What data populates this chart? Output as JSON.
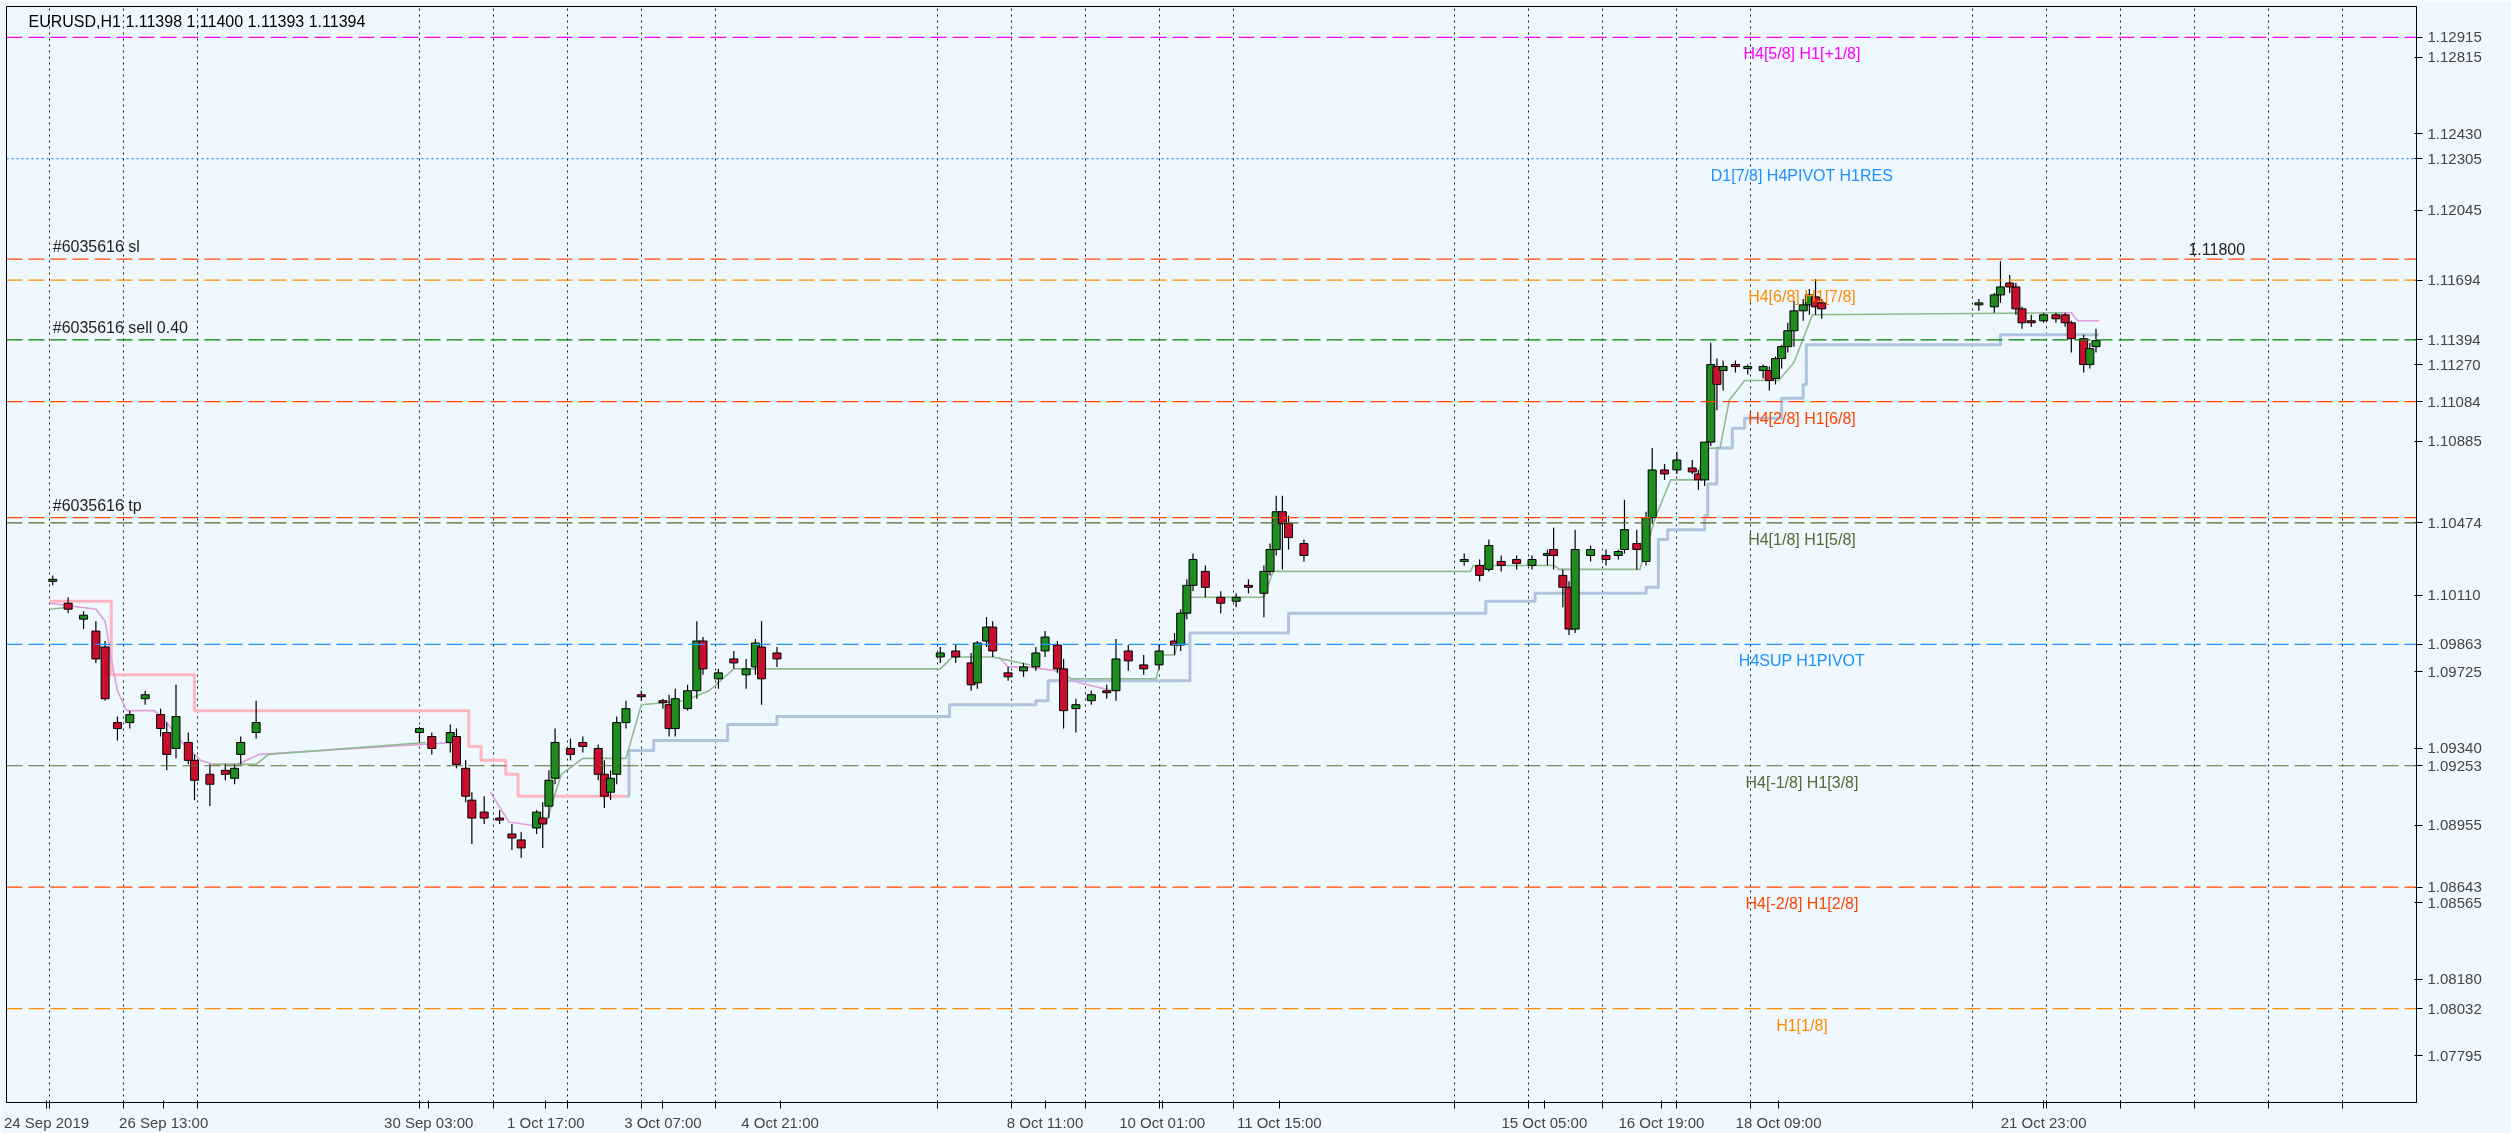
{
  "chart_data": {
    "type": "candlestick",
    "title": "EURUSD,H1  1.11398 1.11400 1.11393 1.11394",
    "x": [
      "2019-09-25T01:00",
      "2019-09-25T06:00",
      "2019-09-25T11:00",
      "2019-09-25T15:00",
      "2019-09-25T18:00",
      "2019-09-25T22:00",
      "2019-09-26T02:00",
      "2019-09-26T07:00",
      "2019-09-26T12:00",
      "2019-09-26T14:00",
      "2019-09-26T17:00",
      "2019-09-26T21:00",
      "2019-09-26T23:00",
      "2019-09-27T04:00",
      "2019-09-27T09:00",
      "2019-09-27T12:00",
      "2019-09-27T14:00",
      "2019-09-27T19:00",
      "2019-09-30T00:00",
      "2019-09-30T04:00",
      "2019-09-30T10:00",
      "2019-09-30T12:00",
      "2019-09-30T15:00",
      "2019-09-30T17:00",
      "2019-09-30T21:00",
      "2019-10-01T02:00",
      "2019-10-01T06:00",
      "2019-10-01T09:00",
      "2019-10-01T14:00",
      "2019-10-01T16:00",
      "2019-10-01T18:00",
      "2019-10-01T20:00",
      "2019-10-02T01:00",
      "2019-10-02T05:00",
      "2019-10-02T10:00",
      "2019-10-02T12:00",
      "2019-10-02T14:00",
      "2019-10-02T16:00",
      "2019-10-02T19:00",
      "2019-10-03T00:00",
      "2019-10-03T07:00",
      "2019-10-03T09:00",
      "2019-10-03T11:00",
      "2019-10-03T15:00",
      "2019-10-03T18:00",
      "2019-10-03T20:00",
      "2019-10-04T01:00",
      "2019-10-04T06:00",
      "2019-10-04T10:00",
      "2019-10-04T13:00",
      "2019-10-04T15:00",
      "2019-10-04T20:00",
      "2019-10-07T01:00",
      "2019-10-07T06:00",
      "2019-10-07T11:00",
      "2019-10-07T13:00",
      "2019-10-07T16:00",
      "2019-10-07T18:00",
      "2019-10-07T23:00",
      "2019-10-08T04:00",
      "2019-10-08T08:00",
      "2019-10-08T11:00",
      "2019-10-08T15:00",
      "2019-10-08T17:00",
      "2019-10-08T21:00",
      "2019-10-09T02:00",
      "2019-10-09T07:00",
      "2019-10-09T10:00",
      "2019-10-09T14:00",
      "2019-10-09T19:00",
      "2019-10-10T00:00",
      "2019-10-10T05:00",
      "2019-10-10T07:00",
      "2019-10-10T09:00",
      "2019-10-10T11:00",
      "2019-10-10T15:00",
      "2019-10-10T20:00",
      "2019-10-11T01:00",
      "2019-10-11T05:00",
      "2019-10-11T10:00",
      "2019-10-11T12:00",
      "2019-10-11T14:00",
      "2019-10-11T16:00",
      "2019-10-11T18:00",
      "2019-10-11T23:00",
      "2019-10-14T03:00",
      "2019-10-14T08:00",
      "2019-10-14T11:00",
      "2019-10-14T15:00",
      "2019-10-14T20:00",
      "2019-10-15T01:00",
      "2019-10-15T06:00",
      "2019-10-15T08:00",
      "2019-10-15T11:00",
      "2019-10-15T13:00",
      "2019-10-15T15:00",
      "2019-10-15T20:00",
      "2019-10-16T01:00",
      "2019-10-16T05:00",
      "2019-10-16T07:00",
      "2019-10-16T11:00",
      "2019-10-16T14:00",
      "2019-10-16T16:00",
      "2019-10-16T20:00",
      "2019-10-17T00:00",
      "2019-10-17T05:00",
      "2019-10-17T07:00",
      "2019-10-17T09:00",
      "2019-10-17T11:00",
      "2019-10-17T13:00",
      "2019-10-17T15:00",
      "2019-10-17T19:00",
      "2019-10-17T23:00",
      "2019-10-18T04:00",
      "2019-10-18T06:00",
      "2019-10-18T08:00",
      "2019-10-18T10:00",
      "2019-10-18T12:00",
      "2019-10-18T14:00",
      "2019-10-18T17:00",
      "2019-10-18T19:00",
      "2019-10-18T21:00",
      "2019-10-18T23:00",
      "2019-10-21T02:00",
      "2019-10-21T07:00",
      "2019-10-21T09:00",
      "2019-10-21T12:00",
      "2019-10-21T14:00",
      "2019-10-21T16:00",
      "2019-10-21T19:00",
      "2019-10-21T23:00",
      "2019-10-22T03:00",
      "2019-10-22T06:00",
      "2019-10-22T08:00",
      "2019-10-22T12:00",
      "2019-10-22T14:00",
      "2019-10-22T16:00"
    ],
    "ohlc": [
      [
        1.1018,
        1.1021,
        1.1016,
        1.1019
      ],
      [
        1.1007,
        1.101,
        1.1002,
        1.1004
      ],
      [
        1.0999,
        1.1003,
        1.0994,
        1.1001
      ],
      [
        1.0993,
        1.0998,
        1.0977,
        1.0979
      ],
      [
        1.0985,
        1.0988,
        1.0958,
        1.0959
      ],
      [
        1.0947,
        1.095,
        1.0938,
        1.0944
      ],
      [
        1.0947,
        1.0953,
        1.0944,
        1.0951
      ],
      [
        1.0959,
        1.0963,
        1.0956,
        1.0961
      ],
      [
        1.0951,
        1.0954,
        1.094,
        1.0944
      ],
      [
        1.0942,
        1.0947,
        1.0923,
        1.0931
      ],
      [
        1.0934,
        1.0966,
        1.0929,
        1.095
      ],
      [
        1.0937,
        1.0942,
        1.0926,
        1.0928
      ],
      [
        1.0928,
        1.0931,
        1.0908,
        1.0918
      ],
      [
        1.0921,
        1.0926,
        1.0905,
        1.0916
      ],
      [
        1.0923,
        1.0926,
        1.0918,
        1.0921
      ],
      [
        1.0919,
        1.0926,
        1.0916,
        1.0924
      ],
      [
        1.0931,
        1.094,
        1.0926,
        1.0937
      ],
      [
        1.0942,
        1.0958,
        1.0939,
        1.0947
      ],
      [
        1.0942,
        1.0945,
        1.0937,
        1.0944
      ],
      [
        1.094,
        1.0942,
        1.0931,
        1.0934
      ],
      [
        1.0937,
        1.0946,
        1.0932,
        1.0942
      ],
      [
        1.094,
        1.0944,
        1.0924,
        1.0926
      ],
      [
        1.0924,
        1.0928,
        1.0907,
        1.091
      ],
      [
        1.0908,
        1.0912,
        1.0886,
        1.0899
      ],
      [
        1.0902,
        1.091,
        1.0896,
        1.0899
      ],
      [
        1.0899,
        1.0903,
        1.0896,
        1.0898
      ],
      [
        1.0891,
        1.0896,
        1.0883,
        1.0889
      ],
      [
        1.0888,
        1.0892,
        1.0879,
        1.0884
      ],
      [
        1.0894,
        1.0903,
        1.0891,
        1.0902
      ],
      [
        1.0899,
        1.0907,
        1.0884,
        1.0896
      ],
      [
        1.0905,
        1.0923,
        1.0899,
        1.0918
      ],
      [
        1.0919,
        1.0944,
        1.0916,
        1.0937
      ],
      [
        1.0934,
        1.0939,
        1.0928,
        1.0931
      ],
      [
        1.0937,
        1.094,
        1.0932,
        1.0935
      ],
      [
        1.0934,
        1.0936,
        1.0918,
        1.0921
      ],
      [
        1.0921,
        1.0928,
        1.0904,
        1.091
      ],
      [
        1.0912,
        1.0923,
        1.0908,
        1.0919
      ],
      [
        1.0921,
        1.095,
        1.0916,
        1.0947
      ],
      [
        1.0947,
        1.0958,
        1.0944,
        1.0954
      ],
      [
        1.0961,
        1.0963,
        1.0958,
        1.096
      ],
      [
        1.0958,
        1.0959,
        1.0954,
        1.0957
      ],
      [
        1.0956,
        1.0961,
        1.094,
        1.0944
      ],
      [
        1.0944,
        1.0964,
        1.094,
        1.0959
      ],
      [
        1.0954,
        1.0966,
        1.0953,
        1.0963
      ],
      [
        1.0963,
        1.0998,
        1.0959,
        1.0988
      ],
      [
        1.0988,
        1.099,
        1.0971,
        1.0974
      ],
      [
        1.0969,
        1.0974,
        1.0964,
        1.0972
      ],
      [
        1.0979,
        1.0983,
        1.0974,
        1.0977
      ],
      [
        1.0971,
        1.0979,
        1.0964,
        1.0974
      ],
      [
        1.0975,
        1.0989,
        1.0971,
        1.0987
      ],
      [
        1.0985,
        1.0998,
        1.0956,
        1.0969
      ],
      [
        1.0982,
        1.0985,
        1.0975,
        1.0979
      ],
      [
        1.098,
        1.0985,
        1.0977,
        1.0982
      ],
      [
        1.0983,
        1.0986,
        1.0977,
        1.098
      ],
      [
        1.0977,
        1.0982,
        1.0963,
        1.0966
      ],
      [
        1.0967,
        1.0988,
        1.0964,
        1.0987
      ],
      [
        1.0988,
        1.1,
        1.0985,
        1.0995
      ],
      [
        1.0995,
        1.0998,
        1.098,
        1.0983
      ],
      [
        1.0972,
        1.0975,
        1.0968,
        1.097
      ],
      [
        1.0973,
        1.0977,
        1.097,
        1.0975
      ],
      [
        1.0975,
        1.0985,
        1.0973,
        1.0982
      ],
      [
        1.0983,
        1.0993,
        1.098,
        1.099
      ],
      [
        1.0986,
        1.0988,
        1.0972,
        1.0974
      ],
      [
        1.0974,
        1.0979,
        1.0944,
        1.0953
      ],
      [
        1.0954,
        1.0959,
        1.0942,
        1.0956
      ],
      [
        1.0958,
        1.0963,
        1.0956,
        1.0961
      ],
      [
        1.0963,
        1.0966,
        1.0959,
        1.0962
      ],
      [
        1.0963,
        1.0989,
        1.0958,
        1.0979
      ],
      [
        1.0983,
        1.0986,
        1.0973,
        1.0978
      ],
      [
        1.0976,
        1.0981,
        1.0971,
        1.0974
      ],
      [
        1.0976,
        1.0986,
        1.0974,
        1.0983
      ],
      [
        1.0988,
        1.0992,
        1.0981,
        1.0986
      ],
      [
        1.0986,
        1.1004,
        1.0983,
        1.1002
      ],
      [
        1.1002,
        1.1019,
        1.0999,
        1.1016
      ],
      [
        1.1016,
        1.1032,
        1.1013,
        1.1029
      ],
      [
        1.1023,
        1.1026,
        1.101,
        1.1015
      ],
      [
        1.101,
        1.1013,
        1.1002,
        1.1007
      ],
      [
        1.1008,
        1.1012,
        1.1005,
        1.101
      ],
      [
        1.1016,
        1.1019,
        1.1012,
        1.1015
      ],
      [
        1.1012,
        1.1026,
        1.1,
        1.1023
      ],
      [
        1.1023,
        1.1037,
        1.1021,
        1.1034
      ],
      [
        1.1034,
        1.1061,
        1.1031,
        1.1053
      ],
      [
        1.1053,
        1.1061,
        1.1024,
        1.1047
      ],
      [
        1.1047,
        1.1051,
        1.1034,
        1.104
      ],
      [
        1.1037,
        1.1039,
        1.1028,
        1.1031
      ],
      [
        1.1028,
        1.1032,
        1.1026,
        1.1029
      ],
      [
        1.1026,
        1.1029,
        1.1018,
        1.1021
      ],
      [
        1.1024,
        1.1039,
        1.1023,
        1.1036
      ],
      [
        1.1028,
        1.1031,
        1.1023,
        1.1026
      ],
      [
        1.1029,
        1.1031,
        1.1024,
        1.1027
      ],
      [
        1.1026,
        1.1031,
        1.1024,
        1.1029
      ],
      [
        1.1031,
        1.1034,
        1.1026,
        1.1032
      ],
      [
        1.1034,
        1.1045,
        1.1024,
        1.1031
      ],
      [
        1.1021,
        1.1024,
        1.1005,
        1.1015
      ],
      [
        1.1015,
        1.1018,
        1.0991,
        1.0994
      ],
      [
        1.0994,
        1.1044,
        1.0992,
        1.1034
      ],
      [
        1.1031,
        1.1036,
        1.1028,
        1.1034
      ],
      [
        1.1031,
        1.1034,
        1.1026,
        1.1029
      ],
      [
        1.1031,
        1.1034,
        1.1029,
        1.1033
      ],
      [
        1.1034,
        1.1059,
        1.1032,
        1.1044
      ],
      [
        1.1037,
        1.1044,
        1.1024,
        1.1034
      ],
      [
        1.1028,
        1.1053,
        1.1026,
        1.105
      ],
      [
        1.105,
        1.1085,
        1.1047,
        1.1074
      ],
      [
        1.1074,
        1.1077,
        1.1069,
        1.1072
      ],
      [
        1.1074,
        1.1083,
        1.1072,
        1.1079
      ],
      [
        1.1075,
        1.1079,
        1.1072,
        1.1073
      ],
      [
        1.1072,
        1.1074,
        1.1064,
        1.1069
      ],
      [
        1.1069,
        1.1088,
        1.1066,
        1.1088
      ],
      [
        1.1088,
        1.1138,
        1.1086,
        1.1127
      ],
      [
        1.1126,
        1.113,
        1.1104,
        1.1117
      ],
      [
        1.1124,
        1.1129,
        1.1114,
        1.1126
      ],
      [
        1.1127,
        1.1129,
        1.1123,
        1.1126
      ],
      [
        1.1125,
        1.1127,
        1.1122,
        1.1126
      ],
      [
        1.1124,
        1.1127,
        1.112,
        1.1126
      ],
      [
        1.1124,
        1.1126,
        1.1114,
        1.1119
      ],
      [
        1.112,
        1.1131,
        1.1117,
        1.113
      ],
      [
        1.113,
        1.1137,
        1.1125,
        1.1136
      ],
      [
        1.1136,
        1.1148,
        1.1133,
        1.1144
      ],
      [
        1.1144,
        1.1159,
        1.1136,
        1.1154
      ],
      [
        1.1154,
        1.116,
        1.1149,
        1.1157
      ],
      [
        1.1157,
        1.1165,
        1.1152,
        1.1162
      ],
      [
        1.1161,
        1.117,
        1.1152,
        1.1156
      ],
      [
        1.1158,
        1.116,
        1.115,
        1.1155
      ],
      [
        1.1157,
        1.116,
        1.1154,
        1.1158
      ],
      [
        1.1156,
        1.1163,
        1.1153,
        1.1162
      ],
      [
        1.1162,
        1.1179,
        1.1158,
        1.1166
      ],
      [
        1.1168,
        1.1172,
        1.1163,
        1.1166
      ],
      [
        1.1166,
        1.1168,
        1.1152,
        1.1155
      ],
      [
        1.1155,
        1.1156,
        1.1145,
        1.1148
      ],
      [
        1.1149,
        1.1152,
        1.1146,
        1.1148
      ],
      [
        1.1149,
        1.1153,
        1.1148,
        1.1152
      ],
      [
        1.1152,
        1.1153,
        1.1148,
        1.115
      ],
      [
        1.1152,
        1.1153,
        1.1146,
        1.1148
      ],
      [
        1.1148,
        1.1149,
        1.1133,
        1.114
      ],
      [
        1.114,
        1.1142,
        1.1123,
        1.1127
      ],
      [
        1.1127,
        1.1138,
        1.1125,
        1.1135
      ],
      [
        1.1136,
        1.1145,
        1.1133,
        1.1139
      ]
    ],
    "series": [
      {
        "type": "step",
        "color": "#ffb6c1",
        "x": [
          "2019-09-25T00:00",
          "2019-09-25T20:00",
          "2019-09-26T23:00",
          "2019-09-30T16:00",
          "2019-09-30T20:00",
          "2019-10-01T04:00",
          "2019-10-01T08:00",
          "2019-10-02T19:00"
        ],
        "values": [
          1.1008,
          1.0971,
          1.0953,
          1.0935,
          1.0928,
          1.0921,
          1.091,
          1.091
        ]
      },
      {
        "type": "step",
        "color": "#b0c4de",
        "x": [
          "2019-10-02T19:00",
          "2019-10-02T20:00",
          "2019-10-03T04:00",
          "2019-10-04T04:00",
          "2019-10-04T20:00",
          "2019-10-07T04:00",
          "2019-10-08T08:00",
          "2019-10-08T12:00",
          "2019-10-10T10:00",
          "2019-10-11T18:00",
          "2019-10-14T10:00",
          "2019-10-15T02:00",
          "2019-10-16T14:00",
          "2019-10-16T18:00",
          "2019-10-16T21:00",
          "2019-10-17T09:00",
          "2019-10-17T10:00",
          "2019-10-17T13:00",
          "2019-10-17T18:00",
          "2019-10-17T22:00",
          "2019-10-18T10:00",
          "2019-10-18T17:00",
          "2019-10-18T18:00",
          "2019-10-21T09:00",
          "2019-10-22T17:00"
        ],
        "values": [
          1.091,
          1.0933,
          1.0938,
          1.0946,
          1.095,
          1.0956,
          1.0958,
          1.0968,
          1.0992,
          1.1002,
          1.1008,
          1.1012,
          1.1015,
          1.1039,
          1.1044,
          1.1051,
          1.1067,
          1.1085,
          1.1095,
          1.11,
          1.111,
          1.1117,
          1.1137,
          1.1142,
          1.1142
        ]
      },
      {
        "type": "line",
        "color": "#dda0dd",
        "x": [
          "2019-09-25T00:00",
          "2019-09-25T15:00",
          "2019-09-25T18:00",
          "2019-09-25T20:00",
          "2019-09-25T22:00",
          "2019-09-26T01:00",
          "2019-09-26T10:00",
          "2019-09-26T14:00",
          "2019-09-26T19:00",
          "2019-09-27T01:00",
          "2019-09-27T05:00",
          "2019-09-27T13:00",
          "2019-09-27T20:00",
          "2019-09-30T11:00",
          "2019-09-30T15:00",
          "2019-09-30T23:00",
          "2019-10-01T05:00",
          "2019-10-01T14:00",
          "2019-10-01T18:00",
          "2019-10-07T16:00",
          "2019-10-07T20:00",
          "2019-10-07T23:00",
          "2019-10-08T05:00",
          "2019-10-08T15:00",
          "2019-10-08T22:00",
          "2019-10-09T09:00",
          "2019-10-11T11:00",
          "2019-10-15T09:00",
          "2019-10-15T13:00",
          "2019-10-17T15:00",
          "2019-10-22T03:00",
          "2019-10-22T08:00",
          "2019-10-22T10:00",
          "2019-10-22T17:00"
        ],
        "values": [
          1.1007,
          1.1004,
          1.0998,
          1.0979,
          1.0963,
          1.0953,
          1.0953,
          1.0947,
          1.0937,
          1.0928,
          1.0926,
          1.0926,
          1.0931,
          1.0937,
          null,
          1.0912,
          1.0897,
          1.0895,
          null,
          null,
          1.098,
          1.0975,
          1.0975,
          1.0973,
          1.0967,
          1.0963,
          null,
          1.1024,
          1.1024,
          null,
          1.1153,
          1.1153,
          1.1149,
          1.1149
        ]
      },
      {
        "type": "line",
        "color": "#8fbc8f",
        "x": [
          "2019-09-25T00:00",
          "2019-09-25T06:00",
          "2019-09-26T05:00",
          "2019-09-27T05:00",
          "2019-09-27T19:00",
          "2019-09-27T23:00",
          "2019-09-30T02:00",
          "2019-09-30T22:00",
          "2019-10-01T17:00",
          "2019-10-01T22:00",
          "2019-10-02T05:00",
          "2019-10-02T19:00",
          "2019-10-03T00:00",
          "2019-10-03T14:00",
          "2019-10-03T22:00",
          "2019-10-04T06:00",
          "2019-10-07T01:00",
          "2019-10-07T05:00",
          "2019-10-07T18:00",
          "2019-10-08T06:00",
          "2019-10-08T15:00",
          "2019-10-08T19:00",
          "2019-10-09T23:00",
          "2019-10-10T01:00",
          "2019-10-10T05:00",
          "2019-10-10T10:00",
          "2019-10-11T10:00",
          "2019-10-11T13:00",
          "2019-10-14T05:00",
          "2019-10-14T06:00",
          "2019-10-15T08:00",
          "2019-10-15T10:00",
          "2019-10-16T12:00",
          "2019-10-16T17:00",
          "2019-10-16T22:00",
          "2019-10-17T06:00",
          "2019-10-17T10:00",
          "2019-10-17T14:00",
          "2019-10-17T17:00",
          "2019-10-17T22:00",
          "2019-10-18T09:00",
          "2019-10-18T14:00",
          "2019-10-18T20:00",
          "2019-10-22T05:00"
        ],
        "values": [
          1.1004,
          1.1005,
          null,
          1.0926,
          1.0926,
          1.0931,
          1.0937,
          null,
          1.0896,
          1.0921,
          1.0929,
          1.0929,
          1.0956,
          1.0958,
          1.0963,
          1.0974,
          1.0974,
          1.098,
          1.098,
          1.0976,
          null,
          1.0969,
          1.0969,
          1.0981,
          1.0981,
          1.101,
          1.101,
          1.1023,
          1.1023,
          1.1026,
          1.1026,
          1.1024,
          1.1024,
          1.105,
          1.1069,
          1.1069,
          1.1085,
          1.1085,
          1.1109,
          1.1119,
          1.1119,
          1.1128,
          1.1152,
          1.1153
        ]
      }
    ],
    "ref_lines": [
      {
        "axis": "y",
        "value": 1.12915,
        "label": "H4[5/8] H1[+1/8]",
        "color": "#ff00ff",
        "line_style": "dashed"
      },
      {
        "axis": "y",
        "value": 1.12305,
        "label": "D1[7/8] H4PIVOT H1RES",
        "color": "#1e90ff",
        "line_style": "dotted"
      },
      {
        "axis": "y",
        "value": 1.118,
        "label": null,
        "color": "#ff4500",
        "line_style": "dashed"
      },
      {
        "axis": "y",
        "value": 1.11694,
        "label": "H4[6/8] H1[7/8]",
        "color": "#ff8c00",
        "line_style": "dashed"
      },
      {
        "axis": "y",
        "value": 1.11394,
        "label": null,
        "color": "#008000",
        "line_style": "dashed"
      },
      {
        "axis": "y",
        "value": 1.11084,
        "label": "H4[2/8] H1[6/8]",
        "color": "#ff4500",
        "line_style": "dashed"
      },
      {
        "axis": "y",
        "value": 1.105,
        "label": null,
        "color": "#ff4500",
        "line_style": "dashed"
      },
      {
        "axis": "y",
        "value": 1.10474,
        "label": "H4[1/8] H1[5/8]",
        "color": "#556b2f",
        "line_style": "dashed"
      },
      {
        "axis": "y",
        "value": 1.09863,
        "label": "H4SUP H1PIVOT",
        "color": "#1e90ff",
        "line_style": "dashed"
      },
      {
        "axis": "y",
        "value": 1.09253,
        "label": "H4[-1/8] H1[3/8]",
        "color": "#556b2f",
        "line_style": "dashed"
      },
      {
        "axis": "y",
        "value": 1.08643,
        "label": "H4[-2/8] H1[2/8]",
        "color": "#ff4500",
        "line_style": "dashed"
      },
      {
        "axis": "y",
        "value": 1.08032,
        "label": "H1[1/8]",
        "color": "#ff8c00",
        "line_style": "dashed"
      }
    ],
    "annotations": [
      {
        "text": "#6035616 sl",
        "x": "2019-09-25T01:00",
        "y": 1.118
      },
      {
        "text": "#6035616 sell 0.40",
        "x": "2019-09-25T01:00",
        "y": 1.11394
      },
      {
        "text": "#6035616 tp",
        "x": "2019-09-25T01:00",
        "y": 1.105
      },
      {
        "text": "1.11800",
        "x": "2019-10-23T22:00",
        "y": 1.118
      }
    ],
    "xlim": [
      "2019-09-24T10:00",
      "2019-10-27T00:00"
    ],
    "ylim": [
      1.0756,
      1.1307
    ],
    "xticks": [
      {
        "value": "2019-09-24T23:00",
        "label": "24 Sep 2019"
      },
      {
        "value": "2019-09-26T13:00",
        "label": "26 Sep 13:00"
      },
      {
        "value": "2019-09-30T03:00",
        "label": "30 Sep 03:00"
      },
      {
        "value": "2019-10-01T17:00",
        "label": "1 Oct 17:00"
      },
      {
        "value": "2019-10-03T07:00",
        "label": "3 Oct 07:00"
      },
      {
        "value": "2019-10-04T21:00",
        "label": "4 Oct 21:00"
      },
      {
        "value": "2019-10-08T11:00",
        "label": "8 Oct 11:00"
      },
      {
        "value": "2019-10-10T01:00",
        "label": "10 Oct 01:00"
      },
      {
        "value": "2019-10-11T15:00",
        "label": "11 Oct 15:00"
      },
      {
        "value": "2019-10-15T05:00",
        "label": "15 Oct 05:00"
      },
      {
        "value": "2019-10-16T19:00",
        "label": "16 Oct 19:00"
      },
      {
        "value": "2019-10-18T09:00",
        "label": "18 Oct 09:00"
      },
      {
        "value": "2019-10-21T23:00",
        "label": "21 Oct 23:00"
      },
      {
        "value": "2019-09-25",
        "label": null
      },
      {
        "value": "2019-09-26",
        "label": null
      },
      {
        "value": "2019-09-27",
        "label": null
      },
      {
        "value": "2019-09-30",
        "label": null
      },
      {
        "value": "2019-10-01",
        "label": null
      },
      {
        "value": "2019-10-02",
        "label": null
      },
      {
        "value": "2019-10-03",
        "label": null
      },
      {
        "value": "2019-10-04",
        "label": null
      },
      {
        "value": "2019-10-07",
        "label": null
      },
      {
        "value": "2019-10-08",
        "label": null
      },
      {
        "value": "2019-10-09",
        "label": null
      },
      {
        "value": "2019-10-10",
        "label": null
      },
      {
        "value": "2019-10-11",
        "label": null
      },
      {
        "value": "2019-10-14",
        "label": null
      },
      {
        "value": "2019-10-15",
        "label": null
      },
      {
        "value": "2019-10-16",
        "label": null
      },
      {
        "value": "2019-10-17",
        "label": null
      },
      {
        "value": "2019-10-18",
        "label": null
      },
      {
        "value": "2019-10-21",
        "label": null
      },
      {
        "value": "2019-10-22",
        "label": null
      },
      {
        "value": "2019-10-23",
        "label": null
      },
      {
        "value": "2019-10-24",
        "label": null
      },
      {
        "value": "2019-10-25",
        "label": null
      },
      {
        "value": "2019-10-26",
        "label": null
      }
    ],
    "yticks": [
      1.12815,
      {
        "value": 1.1243,
        "label": "1.12430"
      },
      1.12045,
      {
        "value": 1.1127,
        "label": "1.11270"
      },
      1.10885,
      {
        "value": 1.1011,
        "label": "1.10110"
      },
      1.09725,
      {
        "value": 1.0934,
        "label": "1.09340"
      },
      1.08955,
      1.08565,
      {
        "value": 1.0818,
        "label": "1.08180"
      },
      1.07795,
      1.12915,
      1.12305,
      1.11694,
      1.11394,
      1.11084,
      1.10474,
      1.09863,
      1.09253,
      1.08643,
      1.08032
    ],
    "grid": "x",
    "marker": "none"
  }
}
